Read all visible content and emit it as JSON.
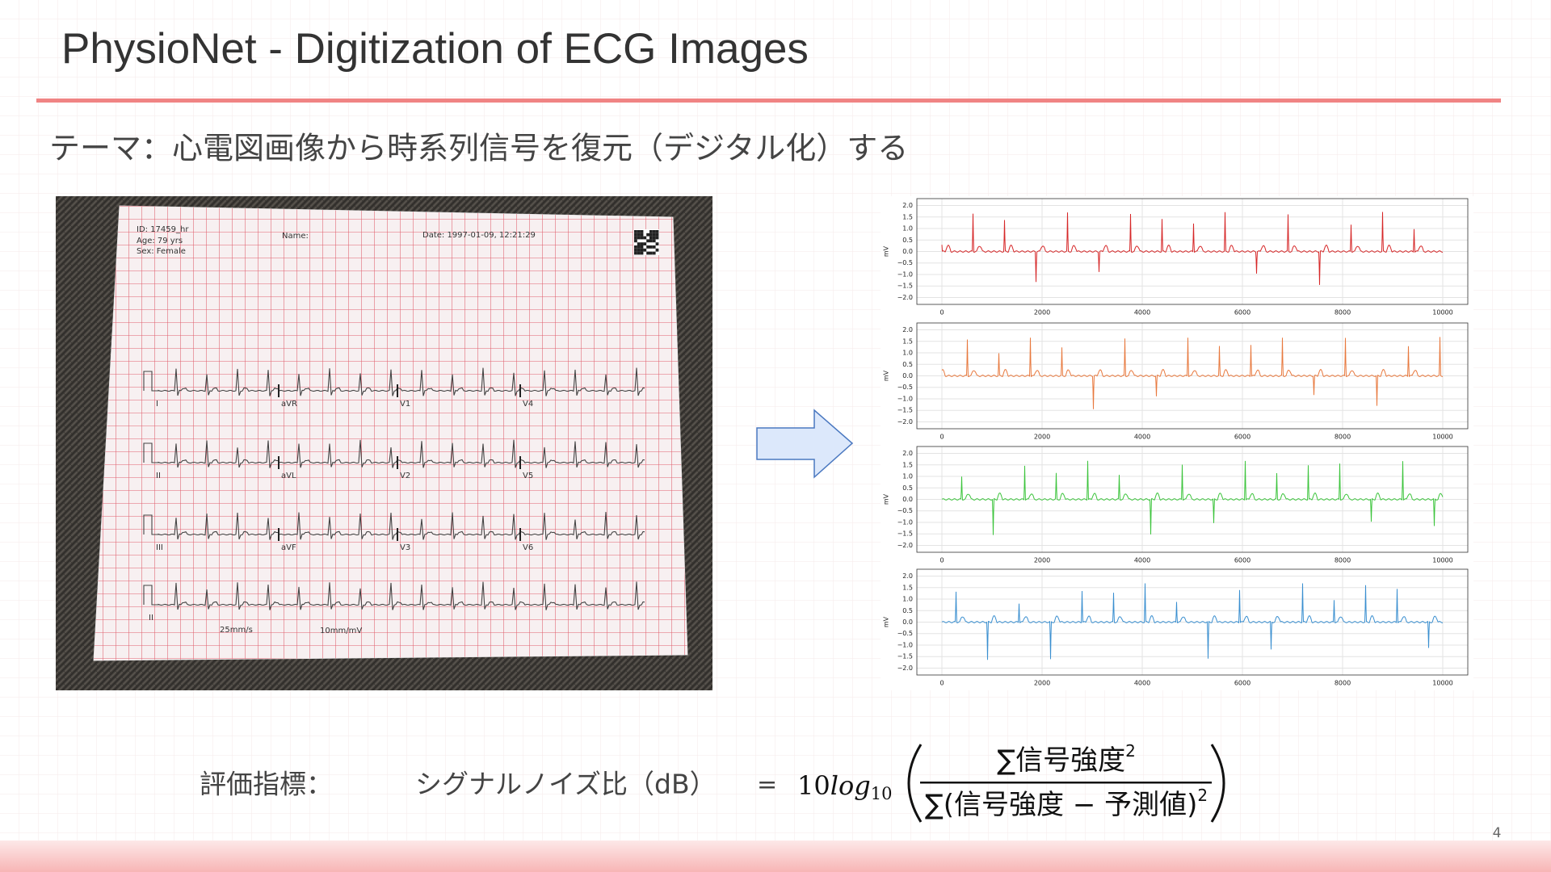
{
  "header": {
    "title": "PhysioNet - Digitization of ECG Images"
  },
  "subtitle": "テーマ：心電図画像から時系列信号を復元（デジタル化）する",
  "ecg_photo": {
    "id": "ID: 17459_hr",
    "age": "Age: 79 yrs",
    "sex": "Sex: Female",
    "name": "Name:",
    "date": "Date: 1997-01-09, 12:21:29",
    "leads": [
      [
        "I",
        "aVR",
        "V1",
        "V4"
      ],
      [
        "II",
        "aVL",
        "V2",
        "V5"
      ],
      [
        "III",
        "aVF",
        "V3",
        "V6"
      ],
      [
        "II"
      ]
    ],
    "speed": "25mm/s",
    "gain": "10mm/mV"
  },
  "plots": {
    "ylabel": "mV",
    "xlim": [
      -500,
      10500
    ],
    "ylim": [
      -2.3,
      2.3
    ],
    "yticks": [
      {
        "value": 2,
        "label": "2.0"
      },
      {
        "value": 1.5,
        "label": "1.5"
      },
      {
        "value": 1,
        "label": "1.0"
      },
      {
        "value": 0.5,
        "label": "0.5"
      },
      {
        "value": 0,
        "label": "0.0"
      },
      {
        "value": -0.5,
        "label": "−0.5"
      },
      {
        "value": -1,
        "label": "−1.0"
      },
      {
        "value": -1.5,
        "label": "−1.5"
      },
      {
        "value": -2,
        "label": "−2.0"
      }
    ],
    "xticks": [
      0,
      2000,
      4000,
      6000,
      8000,
      10000
    ],
    "grid": true,
    "colors": [
      "#d62728",
      "#e8793e",
      "#3cc43c",
      "#3a8fd0"
    ]
  },
  "formula": {
    "label": "評価指標：",
    "lhs": "シグナルノイズ比（dB）",
    "equals": "=",
    "coef": "10",
    "log": "log",
    "base": "10",
    "numerator": "∑信号強度",
    "denominator": "∑(信号強度 − 予測値)",
    "exponent": "2"
  },
  "page_number": "4"
}
